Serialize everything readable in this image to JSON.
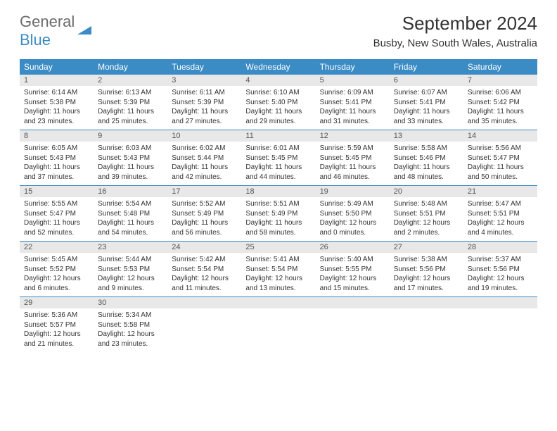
{
  "logo": {
    "text1": "General",
    "text2": "Blue"
  },
  "title": "September 2024",
  "location": "Busby, New South Wales, Australia",
  "dayNames": [
    "Sunday",
    "Monday",
    "Tuesday",
    "Wednesday",
    "Thursday",
    "Friday",
    "Saturday"
  ],
  "colors": {
    "headerBg": "#3b8bc4",
    "dayNumBg": "#e8e8e8",
    "text": "#333333",
    "logoGray": "#6b6b6b",
    "logoBlue": "#3b8bc4"
  },
  "weeks": [
    [
      {
        "n": "1",
        "sr": "6:14 AM",
        "ss": "5:38 PM",
        "dl": "11 hours and 23 minutes."
      },
      {
        "n": "2",
        "sr": "6:13 AM",
        "ss": "5:39 PM",
        "dl": "11 hours and 25 minutes."
      },
      {
        "n": "3",
        "sr": "6:11 AM",
        "ss": "5:39 PM",
        "dl": "11 hours and 27 minutes."
      },
      {
        "n": "4",
        "sr": "6:10 AM",
        "ss": "5:40 PM",
        "dl": "11 hours and 29 minutes."
      },
      {
        "n": "5",
        "sr": "6:09 AM",
        "ss": "5:41 PM",
        "dl": "11 hours and 31 minutes."
      },
      {
        "n": "6",
        "sr": "6:07 AM",
        "ss": "5:41 PM",
        "dl": "11 hours and 33 minutes."
      },
      {
        "n": "7",
        "sr": "6:06 AM",
        "ss": "5:42 PM",
        "dl": "11 hours and 35 minutes."
      }
    ],
    [
      {
        "n": "8",
        "sr": "6:05 AM",
        "ss": "5:43 PM",
        "dl": "11 hours and 37 minutes."
      },
      {
        "n": "9",
        "sr": "6:03 AM",
        "ss": "5:43 PM",
        "dl": "11 hours and 39 minutes."
      },
      {
        "n": "10",
        "sr": "6:02 AM",
        "ss": "5:44 PM",
        "dl": "11 hours and 42 minutes."
      },
      {
        "n": "11",
        "sr": "6:01 AM",
        "ss": "5:45 PM",
        "dl": "11 hours and 44 minutes."
      },
      {
        "n": "12",
        "sr": "5:59 AM",
        "ss": "5:45 PM",
        "dl": "11 hours and 46 minutes."
      },
      {
        "n": "13",
        "sr": "5:58 AM",
        "ss": "5:46 PM",
        "dl": "11 hours and 48 minutes."
      },
      {
        "n": "14",
        "sr": "5:56 AM",
        "ss": "5:47 PM",
        "dl": "11 hours and 50 minutes."
      }
    ],
    [
      {
        "n": "15",
        "sr": "5:55 AM",
        "ss": "5:47 PM",
        "dl": "11 hours and 52 minutes."
      },
      {
        "n": "16",
        "sr": "5:54 AM",
        "ss": "5:48 PM",
        "dl": "11 hours and 54 minutes."
      },
      {
        "n": "17",
        "sr": "5:52 AM",
        "ss": "5:49 PM",
        "dl": "11 hours and 56 minutes."
      },
      {
        "n": "18",
        "sr": "5:51 AM",
        "ss": "5:49 PM",
        "dl": "11 hours and 58 minutes."
      },
      {
        "n": "19",
        "sr": "5:49 AM",
        "ss": "5:50 PM",
        "dl": "12 hours and 0 minutes."
      },
      {
        "n": "20",
        "sr": "5:48 AM",
        "ss": "5:51 PM",
        "dl": "12 hours and 2 minutes."
      },
      {
        "n": "21",
        "sr": "5:47 AM",
        "ss": "5:51 PM",
        "dl": "12 hours and 4 minutes."
      }
    ],
    [
      {
        "n": "22",
        "sr": "5:45 AM",
        "ss": "5:52 PM",
        "dl": "12 hours and 6 minutes."
      },
      {
        "n": "23",
        "sr": "5:44 AM",
        "ss": "5:53 PM",
        "dl": "12 hours and 9 minutes."
      },
      {
        "n": "24",
        "sr": "5:42 AM",
        "ss": "5:54 PM",
        "dl": "12 hours and 11 minutes."
      },
      {
        "n": "25",
        "sr": "5:41 AM",
        "ss": "5:54 PM",
        "dl": "12 hours and 13 minutes."
      },
      {
        "n": "26",
        "sr": "5:40 AM",
        "ss": "5:55 PM",
        "dl": "12 hours and 15 minutes."
      },
      {
        "n": "27",
        "sr": "5:38 AM",
        "ss": "5:56 PM",
        "dl": "12 hours and 17 minutes."
      },
      {
        "n": "28",
        "sr": "5:37 AM",
        "ss": "5:56 PM",
        "dl": "12 hours and 19 minutes."
      }
    ],
    [
      {
        "n": "29",
        "sr": "5:36 AM",
        "ss": "5:57 PM",
        "dl": "12 hours and 21 minutes."
      },
      {
        "n": "30",
        "sr": "5:34 AM",
        "ss": "5:58 PM",
        "dl": "12 hours and 23 minutes."
      },
      null,
      null,
      null,
      null,
      null
    ]
  ],
  "labels": {
    "sunrise": "Sunrise: ",
    "sunset": "Sunset: ",
    "daylight": "Daylight: "
  }
}
